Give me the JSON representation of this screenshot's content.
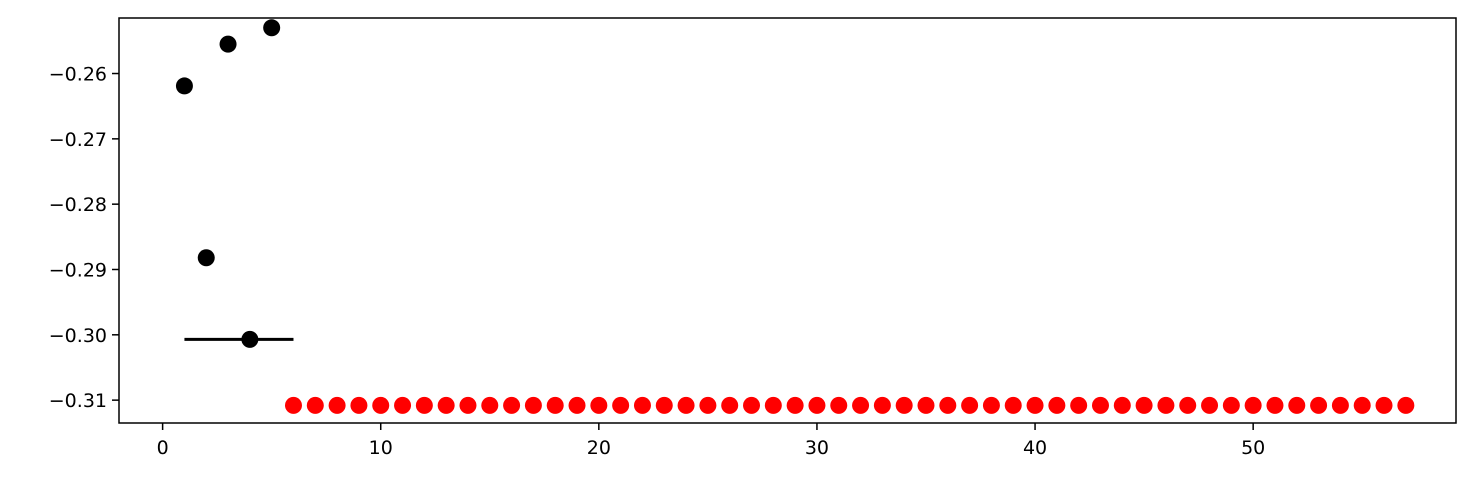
{
  "chart_data": {
    "type": "scatter",
    "title": "",
    "xlabel": "",
    "ylabel": "",
    "xlim": [
      -2,
      59.3
    ],
    "ylim": [
      -0.3135,
      -0.2515
    ],
    "grid": false,
    "legend": "none",
    "x_ticks": [
      {
        "value": 0,
        "label": "0"
      },
      {
        "value": 10,
        "label": "10"
      },
      {
        "value": 20,
        "label": "20"
      },
      {
        "value": 30,
        "label": "30"
      },
      {
        "value": 40,
        "label": "40"
      },
      {
        "value": 50,
        "label": "50"
      }
    ],
    "y_ticks": [
      {
        "value": -0.26,
        "label": "−0.26"
      },
      {
        "value": -0.27,
        "label": "−0.27"
      },
      {
        "value": -0.28,
        "label": "−0.28"
      },
      {
        "value": -0.29,
        "label": "−0.29"
      },
      {
        "value": -0.3,
        "label": "−0.30"
      },
      {
        "value": -0.31,
        "label": "−0.31"
      }
    ],
    "series": [
      {
        "color": "#000000",
        "points": [
          {
            "x": 1,
            "y": -0.2619
          },
          {
            "x": 2,
            "y": -0.2882
          },
          {
            "x": 3,
            "y": -0.2555
          },
          {
            "x": 4,
            "y": -0.3007
          },
          {
            "x": 5,
            "y": -0.253
          }
        ]
      },
      {
        "color": "#ff0000",
        "x_start": 6,
        "x_end": 57,
        "y": -0.3108
      }
    ],
    "segments": [
      {
        "x0": 1,
        "x1": 6,
        "y": -0.3007,
        "color": "#000000"
      }
    ]
  }
}
